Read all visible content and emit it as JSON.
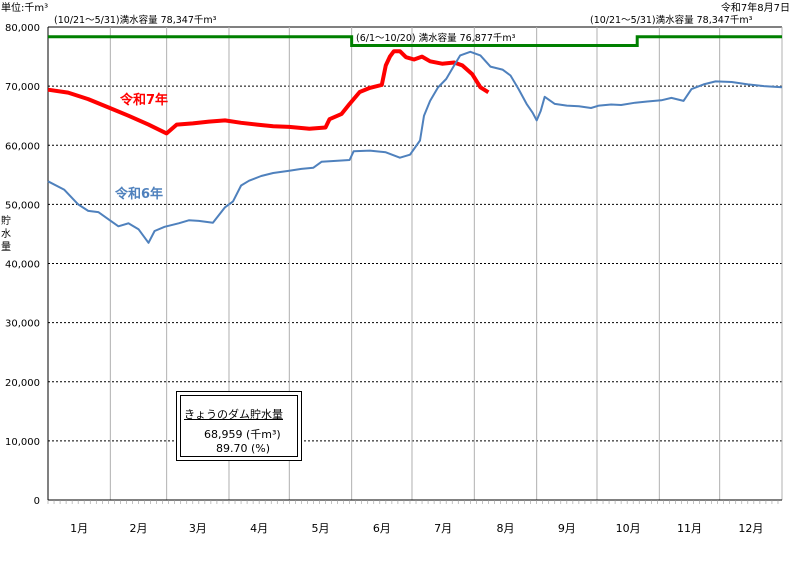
{
  "header": {
    "unit_label": "単位:千m³",
    "date": "令和7年8月7日"
  },
  "info_box": {
    "title": "きょうのダム貯水量",
    "volume_text": "68,959 (千m³)",
    "percent_text": "89.70 (%)"
  },
  "chart_data": {
    "type": "line",
    "ylabel": "貯水量",
    "ylim": [
      0,
      80000
    ],
    "yticks": [
      0,
      10000,
      20000,
      30000,
      40000,
      50000,
      60000,
      70000,
      80000
    ],
    "ytick_labels": [
      "0",
      "10,000",
      "20,000",
      "30,000",
      "40,000",
      "50,000",
      "60,000",
      "70,000",
      "80,000"
    ],
    "months": [
      "1月",
      "2月",
      "3月",
      "4月",
      "5月",
      "6月",
      "7月",
      "8月",
      "9月",
      "10月",
      "11月",
      "12月"
    ],
    "month_days": [
      31,
      28,
      31,
      30,
      31,
      30,
      31,
      31,
      30,
      31,
      30,
      31
    ],
    "grid": true,
    "capacity": {
      "segments": [
        {
          "label": "(10/21～5/31)満水容量 78,347千m³",
          "value": 78347,
          "start_doy": 0,
          "end_doy": 151
        },
        {
          "label": "(6/1～10/20) 満水容量 76,877千m³",
          "value": 76877,
          "start_doy": 151,
          "end_doy": 293
        },
        {
          "label": "(10/21～5/31)満水容量 78,347千m³",
          "value": 78347,
          "start_doy": 293,
          "end_doy": 365
        }
      ],
      "color": "#008000"
    },
    "series": [
      {
        "name": "令和7年",
        "color": "#ff0000",
        "points": [
          [
            0,
            69400
          ],
          [
            10,
            68900
          ],
          [
            20,
            67800
          ],
          [
            30,
            66400
          ],
          [
            40,
            65000
          ],
          [
            50,
            63500
          ],
          [
            59,
            62000
          ],
          [
            64,
            63500
          ],
          [
            72,
            63700
          ],
          [
            80,
            64000
          ],
          [
            88,
            64200
          ],
          [
            96,
            63800
          ],
          [
            104,
            63500
          ],
          [
            112,
            63200
          ],
          [
            120,
            63100
          ],
          [
            130,
            62800
          ],
          [
            138,
            63000
          ],
          [
            140,
            64400
          ],
          [
            146,
            65300
          ],
          [
            150,
            67000
          ],
          [
            155,
            69000
          ],
          [
            160,
            69700
          ],
          [
            166,
            70200
          ],
          [
            168,
            73500
          ],
          [
            170,
            75000
          ],
          [
            172,
            75900
          ],
          [
            175,
            75900
          ],
          [
            178,
            74900
          ],
          [
            182,
            74500
          ],
          [
            186,
            75000
          ],
          [
            190,
            74200
          ],
          [
            196,
            73800
          ],
          [
            202,
            74000
          ],
          [
            206,
            73500
          ],
          [
            211,
            72000
          ],
          [
            215,
            69800
          ],
          [
            219,
            68959
          ]
        ]
      },
      {
        "name": "令和6年",
        "color": "#4f81bd",
        "points": [
          [
            0,
            53900
          ],
          [
            8,
            52500
          ],
          [
            15,
            50000
          ],
          [
            20,
            48900
          ],
          [
            25,
            48700
          ],
          [
            30,
            47500
          ],
          [
            35,
            46300
          ],
          [
            40,
            46800
          ],
          [
            45,
            45800
          ],
          [
            50,
            43500
          ],
          [
            53,
            45500
          ],
          [
            58,
            46200
          ],
          [
            65,
            46800
          ],
          [
            70,
            47300
          ],
          [
            75,
            47200
          ],
          [
            82,
            46900
          ],
          [
            88,
            49500
          ],
          [
            92,
            50500
          ],
          [
            96,
            53200
          ],
          [
            100,
            54000
          ],
          [
            106,
            54800
          ],
          [
            112,
            55300
          ],
          [
            120,
            55700
          ],
          [
            126,
            56000
          ],
          [
            132,
            56200
          ],
          [
            136,
            57200
          ],
          [
            145,
            57400
          ],
          [
            150,
            57500
          ],
          [
            152,
            59000
          ],
          [
            160,
            59100
          ],
          [
            168,
            58800
          ],
          [
            175,
            57900
          ],
          [
            180,
            58400
          ],
          [
            185,
            60800
          ],
          [
            187,
            65000
          ],
          [
            190,
            67500
          ],
          [
            194,
            69800
          ],
          [
            198,
            71200
          ],
          [
            202,
            73500
          ],
          [
            205,
            75200
          ],
          [
            210,
            75800
          ],
          [
            215,
            75200
          ],
          [
            220,
            73300
          ],
          [
            226,
            72800
          ],
          [
            230,
            71800
          ],
          [
            234,
            69500
          ],
          [
            238,
            67000
          ],
          [
            241,
            65500
          ],
          [
            243,
            64200
          ],
          [
            245,
            65800
          ],
          [
            247,
            68200
          ],
          [
            252,
            67000
          ],
          [
            258,
            66700
          ],
          [
            264,
            66600
          ],
          [
            270,
            66300
          ],
          [
            274,
            66700
          ],
          [
            280,
            66900
          ],
          [
            285,
            66800
          ],
          [
            292,
            67200
          ],
          [
            298,
            67400
          ],
          [
            305,
            67600
          ],
          [
            310,
            68000
          ],
          [
            316,
            67500
          ],
          [
            320,
            69500
          ],
          [
            326,
            70300
          ],
          [
            332,
            70800
          ],
          [
            340,
            70700
          ],
          [
            348,
            70300
          ],
          [
            356,
            70000
          ],
          [
            365,
            69800
          ]
        ]
      }
    ],
    "annotations": [
      {
        "text": "令和7年",
        "color": "#ff0000"
      },
      {
        "text": "令和6年",
        "color": "#4f81bd"
      }
    ]
  }
}
